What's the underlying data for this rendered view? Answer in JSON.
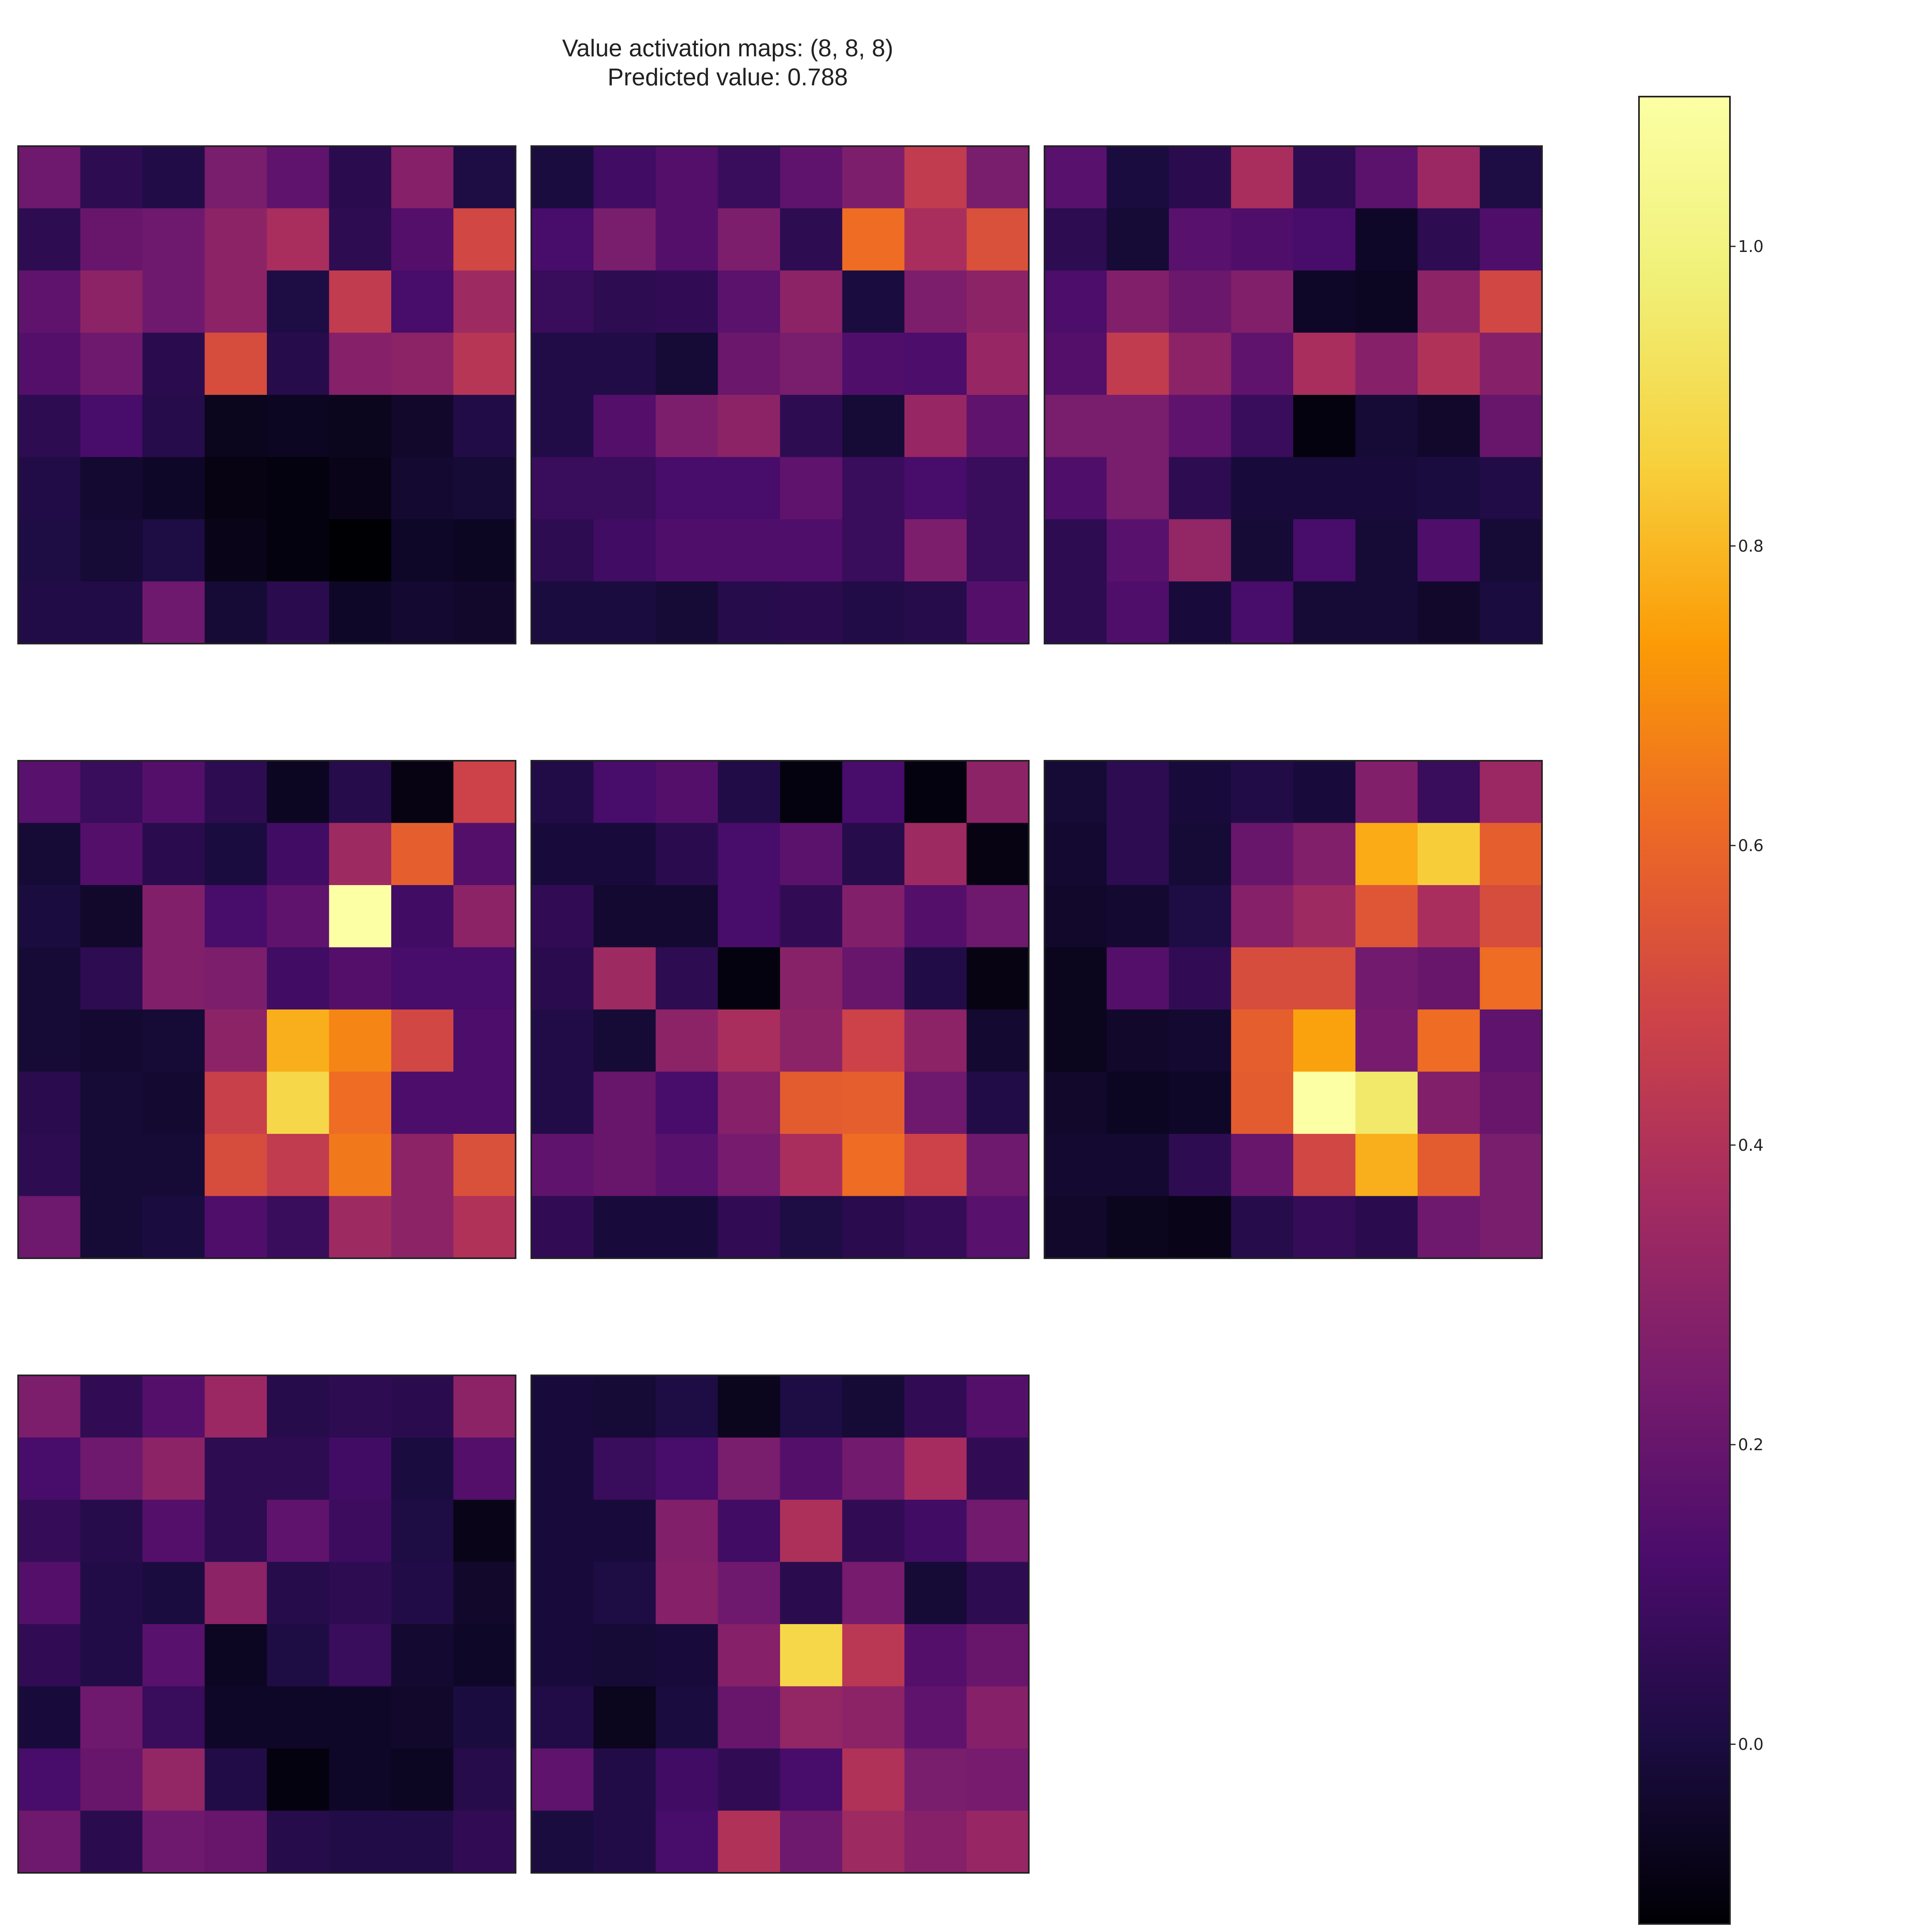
{
  "chart_data": {
    "type": "heatmap",
    "title": "Value activation maps: (8, 8, 8)",
    "subtitle": "Predicted value: 0.788",
    "colormap": "inferno",
    "colorbar": {
      "vmin": -0.12,
      "vmax": 1.1,
      "ticks": [
        0.0,
        0.2,
        0.4,
        0.6,
        0.8,
        1.0
      ],
      "tick_labels": [
        "0.0",
        "0.2",
        "0.4",
        "0.6",
        "0.8",
        "1.0"
      ]
    },
    "maps": [
      [
        [
          0.22,
          0.05,
          0.02,
          0.25,
          0.18,
          0.04,
          0.28,
          0.01
        ],
        [
          0.05,
          0.2,
          0.22,
          0.3,
          0.38,
          0.05,
          0.15,
          0.5
        ],
        [
          0.18,
          0.3,
          0.22,
          0.3,
          0.01,
          0.45,
          0.12,
          0.35
        ],
        [
          0.15,
          0.22,
          0.04,
          0.52,
          0.03,
          0.28,
          0.3,
          0.42
        ],
        [
          0.05,
          0.12,
          0.03,
          -0.07,
          -0.06,
          -0.07,
          -0.04,
          0.02
        ],
        [
          0.02,
          -0.03,
          -0.05,
          -0.09,
          -0.1,
          -0.08,
          -0.03,
          -0.02
        ],
        [
          0.01,
          -0.02,
          0.01,
          -0.08,
          -0.1,
          -0.12,
          -0.05,
          -0.06
        ],
        [
          0.02,
          0.02,
          0.22,
          -0.02,
          0.04,
          -0.05,
          -0.03,
          -0.04
        ]
      ],
      [
        [
          0.0,
          0.1,
          0.15,
          0.08,
          0.18,
          0.26,
          0.45,
          0.25
        ],
        [
          0.12,
          0.25,
          0.15,
          0.26,
          0.05,
          0.62,
          0.38,
          0.53
        ],
        [
          0.08,
          0.05,
          0.06,
          0.17,
          0.3,
          0.0,
          0.26,
          0.3
        ],
        [
          0.02,
          0.02,
          -0.02,
          0.21,
          0.25,
          0.14,
          0.13,
          0.33
        ],
        [
          0.02,
          0.15,
          0.26,
          0.3,
          0.05,
          -0.02,
          0.33,
          0.18
        ],
        [
          0.08,
          0.08,
          0.12,
          0.12,
          0.18,
          0.08,
          0.12,
          0.08
        ],
        [
          0.05,
          0.1,
          0.14,
          0.14,
          0.14,
          0.08,
          0.26,
          0.08
        ],
        [
          0.0,
          0.0,
          -0.02,
          0.03,
          0.04,
          0.02,
          0.03,
          0.15
        ]
      ],
      [
        [
          0.16,
          0.0,
          0.04,
          0.38,
          0.05,
          0.17,
          0.34,
          0.01
        ],
        [
          0.05,
          -0.02,
          0.16,
          0.14,
          0.12,
          -0.05,
          0.05,
          0.14
        ],
        [
          0.13,
          0.27,
          0.21,
          0.27,
          -0.05,
          -0.06,
          0.3,
          0.5
        ],
        [
          0.15,
          0.45,
          0.3,
          0.18,
          0.38,
          0.28,
          0.4,
          0.28
        ],
        [
          0.25,
          0.25,
          0.18,
          0.08,
          -0.1,
          -0.02,
          -0.04,
          0.2
        ],
        [
          0.14,
          0.25,
          0.05,
          -0.01,
          -0.01,
          -0.01,
          0.0,
          0.02
        ],
        [
          0.05,
          0.16,
          0.32,
          -0.02,
          0.12,
          -0.02,
          0.14,
          -0.02
        ],
        [
          0.05,
          0.14,
          -0.01,
          0.12,
          -0.02,
          -0.02,
          -0.04,
          0.0
        ]
      ],
      [
        [
          0.16,
          0.08,
          0.15,
          0.05,
          -0.06,
          0.03,
          -0.09,
          0.48
        ],
        [
          -0.02,
          0.15,
          0.04,
          0.0,
          0.1,
          0.35,
          0.58,
          0.15
        ],
        [
          0.0,
          -0.04,
          0.27,
          0.12,
          0.18,
          1.1,
          0.1,
          0.3
        ],
        [
          -0.02,
          0.05,
          0.27,
          0.26,
          0.1,
          0.15,
          0.12,
          0.12
        ],
        [
          -0.02,
          -0.03,
          -0.02,
          0.3,
          0.78,
          0.68,
          0.5,
          0.13
        ],
        [
          0.04,
          -0.02,
          -0.03,
          0.47,
          0.88,
          0.62,
          0.13,
          0.13
        ],
        [
          0.05,
          -0.02,
          -0.02,
          0.52,
          0.45,
          0.65,
          0.3,
          0.53
        ],
        [
          0.22,
          -0.02,
          0.0,
          0.14,
          0.08,
          0.35,
          0.3,
          0.4
        ]
      ],
      [
        [
          0.02,
          0.12,
          0.15,
          0.02,
          -0.1,
          0.12,
          -0.1,
          0.3
        ],
        [
          -0.01,
          -0.01,
          0.04,
          0.12,
          0.17,
          0.03,
          0.35,
          -0.09
        ],
        [
          0.06,
          -0.03,
          -0.03,
          0.12,
          0.06,
          0.27,
          0.15,
          0.22
        ],
        [
          0.04,
          0.35,
          0.05,
          -0.1,
          0.29,
          0.2,
          0.02,
          -0.09
        ],
        [
          0.02,
          -0.02,
          0.3,
          0.38,
          0.3,
          0.48,
          0.3,
          -0.03
        ],
        [
          0.02,
          0.2,
          0.12,
          0.28,
          0.57,
          0.58,
          0.22,
          0.02
        ],
        [
          0.18,
          0.2,
          0.16,
          0.24,
          0.38,
          0.62,
          0.48,
          0.22
        ],
        [
          0.06,
          -0.01,
          -0.01,
          0.06,
          0.01,
          0.04,
          0.07,
          0.16
        ]
      ],
      [
        [
          -0.02,
          0.05,
          -0.01,
          0.02,
          -0.01,
          0.27,
          0.08,
          0.34
        ],
        [
          -0.03,
          0.05,
          -0.02,
          0.2,
          0.27,
          0.77,
          0.85,
          0.58
        ],
        [
          -0.04,
          -0.03,
          0.01,
          0.28,
          0.35,
          0.55,
          0.38,
          0.52
        ],
        [
          -0.07,
          0.15,
          0.06,
          0.52,
          0.52,
          0.23,
          0.2,
          0.62
        ],
        [
          -0.07,
          -0.04,
          -0.03,
          0.58,
          0.75,
          0.24,
          0.62,
          0.18
        ],
        [
          -0.04,
          -0.06,
          -0.05,
          0.57,
          1.1,
          0.95,
          0.27,
          0.2
        ],
        [
          -0.03,
          -0.03,
          0.05,
          0.2,
          0.5,
          0.78,
          0.57,
          0.25
        ],
        [
          -0.04,
          -0.07,
          -0.08,
          0.03,
          0.07,
          0.04,
          0.22,
          0.25
        ]
      ],
      [
        [
          0.26,
          0.06,
          0.15,
          0.34,
          0.03,
          0.05,
          0.04,
          0.3
        ],
        [
          0.12,
          0.22,
          0.3,
          0.05,
          0.05,
          0.1,
          0.0,
          0.15
        ],
        [
          0.07,
          0.03,
          0.15,
          0.05,
          0.18,
          0.09,
          0.01,
          -0.08
        ],
        [
          0.15,
          0.02,
          0.0,
          0.3,
          0.03,
          0.05,
          0.02,
          -0.04
        ],
        [
          0.06,
          0.02,
          0.16,
          -0.06,
          0.01,
          0.08,
          -0.03,
          -0.05
        ],
        [
          -0.01,
          0.22,
          0.08,
          -0.05,
          -0.05,
          -0.05,
          -0.04,
          0.0
        ],
        [
          0.12,
          0.2,
          0.32,
          0.02,
          -0.1,
          -0.05,
          -0.06,
          0.03
        ],
        [
          0.22,
          0.04,
          0.22,
          0.2,
          0.03,
          0.02,
          0.02,
          0.06
        ]
      ],
      [
        [
          -0.01,
          -0.02,
          0.01,
          -0.07,
          0.01,
          -0.02,
          0.06,
          0.15
        ],
        [
          -0.01,
          0.08,
          0.12,
          0.25,
          0.15,
          0.23,
          0.37,
          0.06
        ],
        [
          -0.01,
          -0.01,
          0.27,
          0.1,
          0.39,
          0.06,
          0.1,
          0.23
        ],
        [
          -0.01,
          0.01,
          0.28,
          0.22,
          0.04,
          0.24,
          -0.02,
          0.05
        ],
        [
          -0.01,
          -0.02,
          -0.01,
          0.28,
          0.88,
          0.43,
          0.15,
          0.2
        ],
        [
          0.02,
          -0.07,
          0.0,
          0.2,
          0.32,
          0.3,
          0.18,
          0.28
        ],
        [
          0.18,
          0.02,
          0.1,
          0.06,
          0.12,
          0.4,
          0.25,
          0.24
        ],
        [
          0.0,
          0.02,
          0.12,
          0.4,
          0.22,
          0.35,
          0.28,
          0.33
        ]
      ]
    ]
  }
}
